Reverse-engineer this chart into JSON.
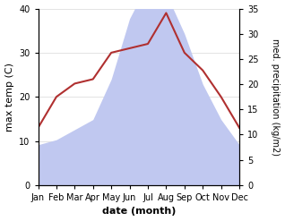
{
  "months": [
    "Jan",
    "Feb",
    "Mar",
    "Apr",
    "May",
    "Jun",
    "Jul",
    "Aug",
    "Sep",
    "Oct",
    "Nov",
    "Dec"
  ],
  "temperature": [
    13,
    20,
    23,
    24,
    30,
    31,
    32,
    39,
    30,
    26,
    20,
    13
  ],
  "precipitation": [
    8,
    9,
    11,
    13,
    21,
    33,
    40,
    38,
    30,
    20,
    13,
    8
  ],
  "temp_color": "#b03030",
  "precip_fill_color": "#c0c8f0",
  "title": "",
  "xlabel": "date (month)",
  "ylabel_left": "max temp (C)",
  "ylabel_right": "med. precipitation (kg/m2)",
  "ylim_left": [
    0,
    40
  ],
  "ylim_right": [
    0,
    35
  ],
  "yticks_left": [
    0,
    10,
    20,
    30,
    40
  ],
  "yticks_right": [
    0,
    5,
    10,
    15,
    20,
    25,
    30,
    35
  ],
  "bg_color": "#ffffff",
  "fig_width": 3.18,
  "fig_height": 2.47,
  "dpi": 100
}
